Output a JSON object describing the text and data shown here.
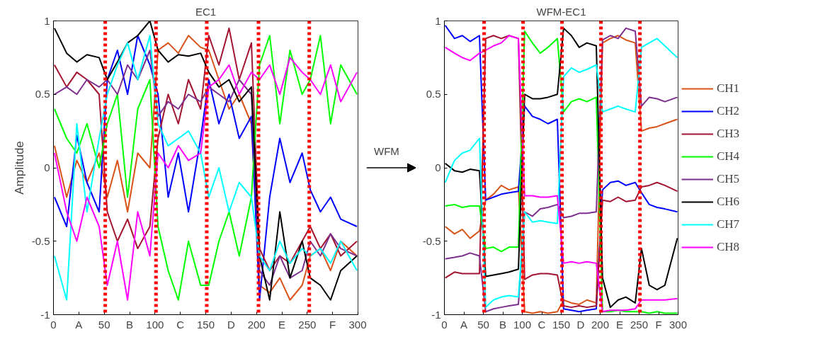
{
  "chart_data": [
    {
      "type": "line",
      "title": "EC1",
      "ylabel": "Amplitude",
      "xlim": [
        0,
        300
      ],
      "ylim": [
        -1,
        1
      ],
      "xticks": [
        0,
        {
          "value": 25,
          "label": "A"
        },
        50,
        {
          "value": 75,
          "label": "B"
        },
        100,
        {
          "value": 125,
          "label": "C"
        },
        150,
        {
          "value": 175,
          "label": "D"
        },
        200,
        {
          "value": 225,
          "label": "E"
        },
        250,
        {
          "value": 275,
          "label": "F"
        },
        300
      ],
      "yticks": [
        -1,
        -0.5,
        0,
        0.5,
        1
      ],
      "grid": false,
      "legend": false,
      "line_style": "solid",
      "x": [
        1,
        13,
        23,
        33,
        45,
        53,
        63,
        73,
        83,
        95,
        103,
        113,
        123,
        133,
        145,
        153,
        163,
        173,
        183,
        195,
        203,
        213,
        223,
        233,
        245,
        253,
        263,
        273,
        283,
        299
      ],
      "series": [
        {
          "color": "#d95319",
          "values": [
            0.15,
            -0.2,
            0.05,
            -0.1,
            0.1,
            -0.2,
            0.05,
            -0.3,
            0.1,
            0.0,
            0.8,
            0.85,
            0.78,
            0.9,
            0.82,
            0.8,
            0.6,
            0.4,
            0.5,
            0.3,
            -0.8,
            -0.85,
            -0.75,
            -0.9,
            -0.8,
            -0.6,
            -0.55,
            -0.7,
            -0.5,
            -0.6
          ]
        },
        {
          "color": "#0000ff",
          "values": [
            -0.2,
            -0.4,
            0.22,
            -0.1,
            -0.3,
            0.6,
            0.8,
            0.5,
            0.9,
            0.7,
            0.5,
            -0.2,
            0.1,
            -0.3,
            0.2,
            0.6,
            0.3,
            0.5,
            0.2,
            0.35,
            -0.9,
            -0.2,
            0.2,
            -0.1,
            0.1,
            -0.15,
            -0.3,
            -0.2,
            -0.35,
            -0.4
          ]
        },
        {
          "color": "#a2142f",
          "values": [
            0.7,
            0.55,
            0.65,
            0.6,
            0.5,
            -0.3,
            -0.5,
            -0.35,
            -0.55,
            -0.4,
            0.2,
            0.5,
            0.3,
            0.6,
            0.4,
            0.9,
            0.7,
            0.95,
            0.6,
            0.85,
            -0.55,
            -0.7,
            -0.6,
            -0.65,
            -0.5,
            -0.4,
            -0.55,
            -0.45,
            -0.6,
            -0.5
          ]
        },
        {
          "color": "#00ff00",
          "values": [
            0.4,
            0.2,
            0.1,
            0.3,
            0.0,
            0.3,
            0.5,
            -0.2,
            0.4,
            0.6,
            -0.4,
            -0.7,
            -0.9,
            -0.5,
            -0.8,
            -0.8,
            -0.5,
            -0.3,
            -0.6,
            -0.2,
            0.7,
            0.9,
            0.3,
            0.8,
            0.5,
            0.6,
            0.9,
            0.3,
            0.7,
            0.5
          ]
        },
        {
          "color": "#7e2f8e",
          "values": [
            0.5,
            0.55,
            0.5,
            0.6,
            0.55,
            0.6,
            0.5,
            0.7,
            0.6,
            0.8,
            0.35,
            0.45,
            0.4,
            0.5,
            0.45,
            0.55,
            0.5,
            0.45,
            0.6,
            0.5,
            -0.7,
            -0.8,
            -0.6,
            -0.75,
            -0.7,
            -0.5,
            -0.6,
            -0.45,
            -0.55,
            -0.6
          ]
        },
        {
          "color": "#000000",
          "values": [
            0.95,
            0.78,
            0.72,
            0.77,
            0.75,
            0.6,
            0.72,
            0.85,
            0.9,
            1.0,
            0.8,
            0.72,
            0.77,
            0.76,
            0.78,
            0.65,
            0.55,
            0.6,
            0.45,
            0.55,
            -0.6,
            -0.9,
            -0.3,
            -0.75,
            -0.5,
            -0.75,
            -0.8,
            -0.9,
            -0.7,
            -0.6
          ]
        },
        {
          "color": "#00ffff",
          "values": [
            -0.6,
            -0.9,
            0.3,
            -0.3,
            0.2,
            0.5,
            0.7,
            0.85,
            0.6,
            0.9,
            0.3,
            0.15,
            0.2,
            0.25,
            0.1,
            -0.2,
            0.0,
            -0.3,
            -0.1,
            -0.2,
            -0.6,
            -0.7,
            -0.5,
            -0.65,
            -0.55,
            -0.6,
            -0.55,
            -0.65,
            -0.5,
            -0.7
          ]
        },
        {
          "color": "#ff00ff",
          "values": [
            0.1,
            -0.3,
            -0.5,
            -0.2,
            -0.4,
            -0.8,
            -0.5,
            -0.9,
            -0.3,
            -0.6,
            0.1,
            0.0,
            0.15,
            0.05,
            0.1,
            0.55,
            0.6,
            0.7,
            0.5,
            0.65,
            0.6,
            0.7,
            0.5,
            0.75,
            0.65,
            0.6,
            0.5,
            0.7,
            0.45,
            0.65
          ]
        }
      ],
      "ref_lines": [
        {
          "axis": "x",
          "value": 51,
          "color": "#ff0000",
          "line_style": "dotted"
        },
        {
          "axis": "x",
          "value": 101,
          "color": "#ff0000",
          "line_style": "dotted"
        },
        {
          "axis": "x",
          "value": 151,
          "color": "#ff0000",
          "line_style": "dotted"
        },
        {
          "axis": "x",
          "value": 202,
          "color": "#ff0000",
          "line_style": "dotted"
        },
        {
          "axis": "x",
          "value": 252,
          "color": "#ff0000",
          "line_style": "dotted"
        }
      ]
    },
    {
      "type": "line",
      "title": "WFM-EC1",
      "annotations": [
        "WFM"
      ],
      "xlim": [
        0,
        300
      ],
      "ylim": [
        -1,
        1
      ],
      "xticks": [
        0,
        {
          "value": 25,
          "label": "A"
        },
        50,
        {
          "value": 75,
          "label": "B"
        },
        100,
        {
          "value": 125,
          "label": "C"
        },
        150,
        {
          "value": 175,
          "label": "D"
        },
        200,
        {
          "value": 225,
          "label": "E"
        },
        250,
        {
          "value": 275,
          "label": "F"
        },
        300
      ],
      "yticks": [
        -1,
        -0.5,
        0,
        0.5,
        1
      ],
      "grid": false,
      "legend": "right",
      "line_style": "solid",
      "x": [
        1,
        13,
        23,
        33,
        45,
        53,
        63,
        73,
        83,
        95,
        103,
        113,
        123,
        133,
        145,
        153,
        163,
        173,
        183,
        195,
        203,
        213,
        223,
        233,
        245,
        253,
        263,
        273,
        283,
        299
      ],
      "series": [
        {
          "name": "CH1",
          "color": "#d95319",
          "values": [
            -0.4,
            -0.45,
            -0.42,
            -0.48,
            -0.43,
            -0.22,
            -0.18,
            -0.12,
            -0.15,
            -0.13,
            -0.98,
            -0.99,
            -0.98,
            -0.99,
            -0.98,
            -0.9,
            -0.92,
            -0.93,
            -0.9,
            -0.92,
            0.85,
            0.88,
            0.9,
            0.87,
            0.85,
            0.25,
            0.27,
            0.28,
            0.3,
            0.33
          ]
        },
        {
          "name": "CH2",
          "color": "#0000ff",
          "values": [
            0.97,
            0.88,
            0.9,
            0.86,
            0.9,
            -0.22,
            -0.2,
            -0.18,
            -0.17,
            -0.16,
            0.42,
            0.35,
            0.33,
            0.3,
            0.33,
            -0.96,
            -0.97,
            -0.98,
            -0.97,
            -0.96,
            -0.15,
            -0.1,
            -0.09,
            -0.12,
            -0.1,
            -0.17,
            -0.25,
            -0.27,
            -0.28,
            -0.3
          ]
        },
        {
          "name": "CH3",
          "color": "#a2142f",
          "values": [
            -0.75,
            -0.71,
            -0.72,
            -0.72,
            -0.72,
            0.88,
            0.9,
            0.88,
            0.9,
            0.88,
            -0.76,
            -0.73,
            -0.72,
            -0.72,
            -0.73,
            -0.94,
            -0.95,
            -0.94,
            -0.95,
            -0.94,
            -0.22,
            -0.23,
            -0.2,
            -0.23,
            -0.22,
            -0.13,
            -0.12,
            -0.1,
            -0.12,
            -0.16
          ]
        },
        {
          "name": "CH4",
          "color": "#00ff00",
          "values": [
            -0.26,
            -0.25,
            -0.27,
            -0.26,
            -0.26,
            -0.55,
            -0.54,
            -0.57,
            -0.54,
            -0.54,
            0.93,
            0.85,
            0.78,
            0.82,
            0.88,
            0.38,
            0.45,
            0.47,
            0.45,
            0.48,
            -0.98,
            -0.98,
            -0.97,
            -0.98,
            -0.98,
            -0.98,
            -0.99,
            -0.98,
            -0.99,
            -0.99
          ]
        },
        {
          "name": "CH5",
          "color": "#7e2f8e",
          "values": [
            -0.62,
            -0.61,
            -0.6,
            -0.58,
            -0.6,
            -0.98,
            -0.96,
            -0.95,
            -0.94,
            -0.93,
            -0.3,
            -0.33,
            -0.28,
            -0.27,
            -0.25,
            -0.34,
            -0.33,
            -0.31,
            -0.31,
            -0.3,
            0.87,
            0.9,
            0.88,
            0.95,
            0.93,
            0.42,
            0.48,
            0.47,
            0.45,
            0.48
          ]
        },
        {
          "name": "CH6",
          "color": "#000000",
          "values": [
            0.03,
            -0.02,
            -0.03,
            -0.01,
            -0.02,
            -0.74,
            -0.73,
            -0.72,
            -0.71,
            -0.69,
            0.5,
            0.47,
            0.47,
            0.48,
            0.5,
            0.95,
            0.9,
            0.82,
            0.85,
            0.83,
            -0.75,
            -0.95,
            -0.9,
            -0.88,
            -0.92,
            -0.55,
            -0.8,
            -0.83,
            -0.8,
            -0.48
          ]
        },
        {
          "name": "CH7",
          "color": "#00ffff",
          "values": [
            -0.1,
            0.05,
            0.1,
            0.12,
            0.2,
            -0.95,
            -0.9,
            -0.88,
            -0.87,
            -0.88,
            -0.3,
            -0.37,
            -0.36,
            -0.37,
            -0.38,
            0.62,
            0.68,
            0.65,
            0.67,
            0.7,
            0.38,
            0.4,
            0.42,
            0.4,
            0.38,
            0.82,
            0.85,
            0.88,
            0.83,
            0.75
          ]
        },
        {
          "name": "CH8",
          "color": "#ff00ff",
          "values": [
            0.82,
            0.78,
            0.75,
            0.73,
            0.78,
            0.8,
            0.83,
            0.85,
            0.9,
            0.88,
            -0.19,
            -0.19,
            -0.2,
            -0.2,
            -0.19,
            -0.65,
            -0.64,
            -0.65,
            -0.64,
            -0.65,
            -0.98,
            -0.97,
            -0.97,
            -0.97,
            -0.96,
            -0.9,
            -0.9,
            -0.9,
            -0.9,
            -0.89
          ]
        }
      ],
      "ref_lines": [
        {
          "axis": "x",
          "value": 51,
          "color": "#ff0000",
          "line_style": "dotted"
        },
        {
          "axis": "x",
          "value": 101,
          "color": "#ff0000",
          "line_style": "dotted"
        },
        {
          "axis": "x",
          "value": 151,
          "color": "#ff0000",
          "line_style": "dotted"
        },
        {
          "axis": "x",
          "value": 201,
          "color": "#ff0000",
          "line_style": "dotted"
        },
        {
          "axis": "x",
          "value": 251,
          "color": "#ff0000",
          "line_style": "dotted"
        }
      ]
    }
  ]
}
